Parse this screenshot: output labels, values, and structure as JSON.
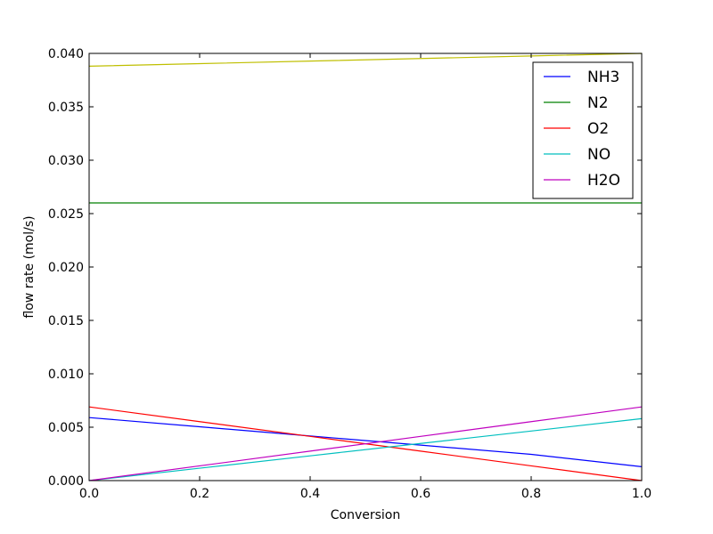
{
  "chart_data": {
    "type": "line",
    "title": "",
    "xlabel": "Conversion",
    "ylabel": "flow rate (mol/s)",
    "xlim": [
      0.0,
      1.0
    ],
    "ylim": [
      0.0,
      0.04
    ],
    "x_ticks": [
      "0.0",
      "0.2",
      "0.4",
      "0.6",
      "0.8",
      "1.0"
    ],
    "y_ticks": [
      "0.000",
      "0.005",
      "0.010",
      "0.015",
      "0.020",
      "0.025",
      "0.030",
      "0.035",
      "0.040"
    ],
    "grid": false,
    "legend_position": "top-right",
    "x": [
      0.0,
      0.2,
      0.4,
      0.6,
      0.8,
      1.0
    ],
    "series": [
      {
        "name": "NH3",
        "color": "#0000ff",
        "values": [
          0.0059,
          0.00504,
          0.00418,
          0.00332,
          0.00246,
          0.0013
        ]
      },
      {
        "name": "N2",
        "color": "#008000",
        "values": [
          0.026,
          0.026,
          0.026,
          0.026,
          0.026,
          0.026
        ]
      },
      {
        "name": "O2",
        "color": "#ff0000",
        "values": [
          0.0069,
          0.00552,
          0.00414,
          0.00276,
          0.00138,
          0.0
        ]
      },
      {
        "name": "NO",
        "color": "#00bfbf",
        "values": [
          0.0,
          0.00116,
          0.00232,
          0.00348,
          0.00464,
          0.0058
        ]
      },
      {
        "name": "H2O",
        "color": "#bf00bf",
        "values": [
          0.0,
          0.00138,
          0.00276,
          0.00414,
          0.00552,
          0.0069
        ]
      },
      {
        "name": "",
        "color": "#bfbf00",
        "values": [
          0.0388,
          0.03904,
          0.03928,
          0.03952,
          0.03976,
          0.04
        ]
      }
    ]
  }
}
